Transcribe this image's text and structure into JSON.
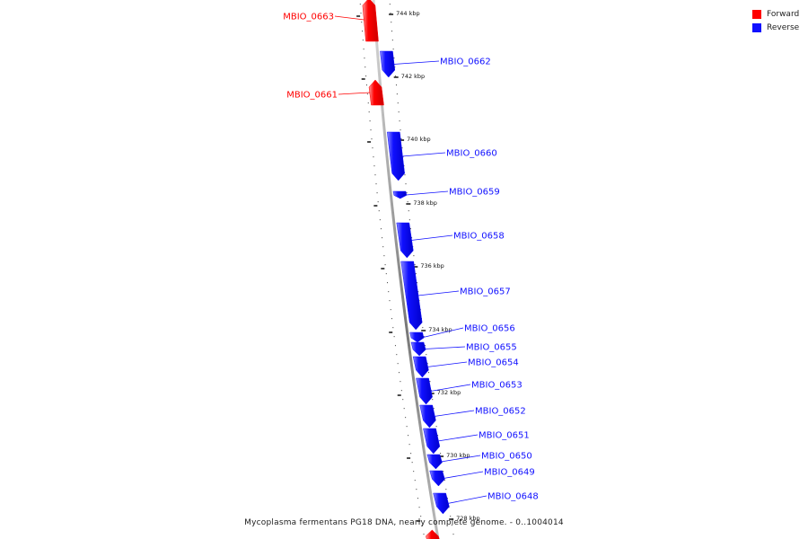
{
  "legend": {
    "forward_label": "Forward",
    "reverse_label": "Reverse",
    "forward_color": "#ff0000",
    "reverse_color": "#1010ff"
  },
  "caption": "Mycoplasma fermentans PG18 DNA, nearly complete genome. - 0..1004014",
  "ticks": [
    "744 kbp",
    "742 kbp",
    "740 kbp",
    "738 kbp",
    "736 kbp",
    "734 kbp",
    "732 kbp",
    "730 kbp",
    "728 kbp"
  ],
  "genes": [
    {
      "name": "MBIO_0663",
      "strand": "forward"
    },
    {
      "name": "MBIO_0662",
      "strand": "reverse"
    },
    {
      "name": "MBIO_0661",
      "strand": "forward"
    },
    {
      "name": "MBIO_0660",
      "strand": "reverse"
    },
    {
      "name": "MBIO_0659",
      "strand": "reverse"
    },
    {
      "name": "MBIO_0658",
      "strand": "reverse"
    },
    {
      "name": "MBIO_0657",
      "strand": "reverse"
    },
    {
      "name": "MBIO_0656",
      "strand": "reverse"
    },
    {
      "name": "MBIO_0655",
      "strand": "reverse"
    },
    {
      "name": "MBIO_0654",
      "strand": "reverse"
    },
    {
      "name": "MBIO_0653",
      "strand": "reverse"
    },
    {
      "name": "MBIO_0652",
      "strand": "reverse"
    },
    {
      "name": "MBIO_0651",
      "strand": "reverse"
    },
    {
      "name": "MBIO_0650",
      "strand": "reverse"
    },
    {
      "name": "MBIO_0649",
      "strand": "reverse"
    },
    {
      "name": "MBIO_0648",
      "strand": "reverse"
    },
    {
      "name": "",
      "strand": "forward"
    }
  ]
}
